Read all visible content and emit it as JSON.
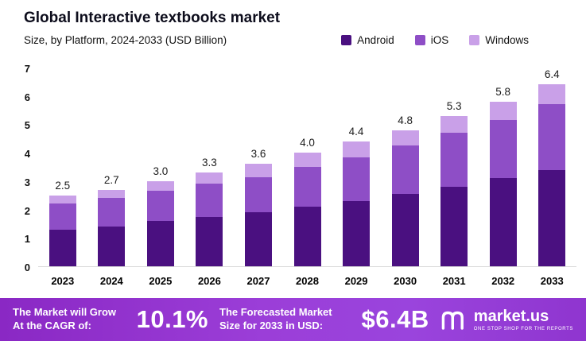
{
  "header": {
    "title": "Global Interactive textbooks market",
    "subtitle": "Size, by Platform, 2024-2033 (USD Billion)"
  },
  "legend": [
    {
      "label": "Android",
      "color": "#4a1080"
    },
    {
      "label": "iOS",
      "color": "#8e4ec6"
    },
    {
      "label": "Windows",
      "color": "#c9a0e8"
    }
  ],
  "chart_data": {
    "type": "bar",
    "stacked": true,
    "title": "Global Interactive textbooks market",
    "subtitle": "Size, by Platform, 2024-2033 (USD Billion)",
    "xlabel": "",
    "ylabel": "",
    "ylim": [
      0,
      7
    ],
    "yticks": [
      0,
      1,
      2,
      3,
      4,
      5,
      6,
      7
    ],
    "grid": false,
    "legend_position": "top-right",
    "categories": [
      "2023",
      "2024",
      "2025",
      "2026",
      "2027",
      "2028",
      "2029",
      "2030",
      "2031",
      "2032",
      "2033"
    ],
    "series": [
      {
        "name": "Android",
        "color": "#4a1080",
        "values": [
          1.3,
          1.4,
          1.6,
          1.75,
          1.9,
          2.1,
          2.3,
          2.55,
          2.8,
          3.1,
          3.4
        ]
      },
      {
        "name": "iOS",
        "color": "#8e4ec6",
        "values": [
          0.9,
          1.0,
          1.05,
          1.15,
          1.25,
          1.4,
          1.55,
          1.7,
          1.9,
          2.05,
          2.3
        ]
      },
      {
        "name": "Windows",
        "color": "#c9a0e8",
        "values": [
          0.3,
          0.3,
          0.35,
          0.4,
          0.45,
          0.5,
          0.55,
          0.55,
          0.6,
          0.65,
          0.7
        ]
      }
    ],
    "totals": [
      2.5,
      2.7,
      3.0,
      3.3,
      3.6,
      4.0,
      4.4,
      4.8,
      5.3,
      5.8,
      6.4
    ],
    "total_labels": [
      "2.5",
      "2.7",
      "3.0",
      "3.3",
      "3.6",
      "4.0",
      "4.4",
      "4.8",
      "5.3",
      "5.8",
      "6.4"
    ]
  },
  "banner": {
    "cagr_label": "The Market will Grow At the CAGR of:",
    "cagr_value": "10.1%",
    "forecast_label": "The Forecasted Market Size for 2033 in USD:",
    "forecast_value": "$6.4B",
    "logo_text": "market.us",
    "logo_tagline": "ONE STOP SHOP FOR THE REPORTS"
  }
}
